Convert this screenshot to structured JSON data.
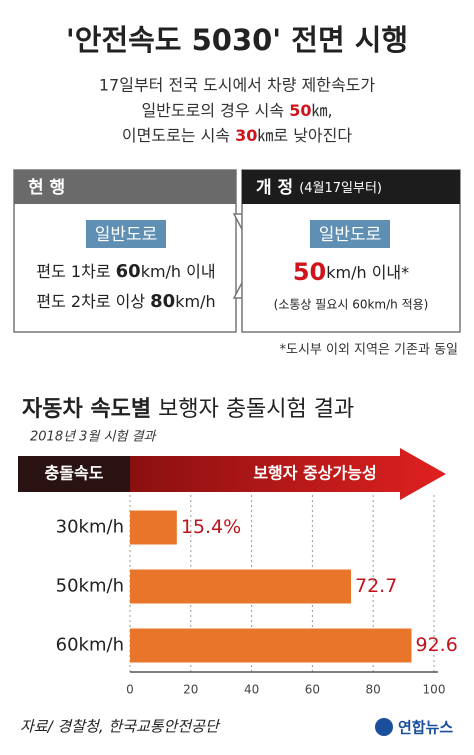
{
  "header": {
    "title": "'안전속도 5030' 전면 시행",
    "line1": "17일부터 전국 도시에서 차량 제한속도가",
    "line2": {
      "before": "일반도로의 경우 시속 ",
      "em": "50",
      "after": "㎞,"
    },
    "line3": {
      "before": "이면도로는 시속 ",
      "em": "30",
      "after": "㎞로 낮아진다"
    }
  },
  "current": {
    "label": "현 행",
    "road": "일반도로",
    "rule1": {
      "before": "편도 1차로 ",
      "em": "60",
      "after": "km/h 이내"
    },
    "rule2": {
      "before": "편도 2차로 이상 ",
      "em": "80",
      "after": "km/h"
    }
  },
  "revised": {
    "label": "개 정",
    "date": "(4월17일부터)",
    "road": "일반도로",
    "rule": {
      "em": "50",
      "after": "km/h 이내*"
    },
    "exception": "(소통상 필요시 60km/h 적용)"
  },
  "note": "*도시부 이외 지역은 기존과 동일",
  "chart_data": {
    "type": "hbar",
    "title": {
      "bold": "자동차 속도별",
      "rest": " 보행자 충돌시험 결과"
    },
    "subtitle": "2018년 3월 시험 결과",
    "category_header": "충돌속도",
    "value_header": "보행자 중상가능성",
    "categories": [
      "30km/h",
      "50km/h",
      "60km/h"
    ],
    "values": [
      15.4,
      72.7,
      92.6
    ],
    "value_labels": [
      "15.4%",
      "72.7",
      "92.6"
    ],
    "color": "#e8752a",
    "xlim": [
      0,
      100
    ],
    "xticks": [
      0,
      20,
      40,
      60,
      80,
      100
    ],
    "grid": true
  },
  "footer": {
    "source": "자료/ 경찰청, 한국교통안전공단",
    "logo": "연합뉴스"
  }
}
